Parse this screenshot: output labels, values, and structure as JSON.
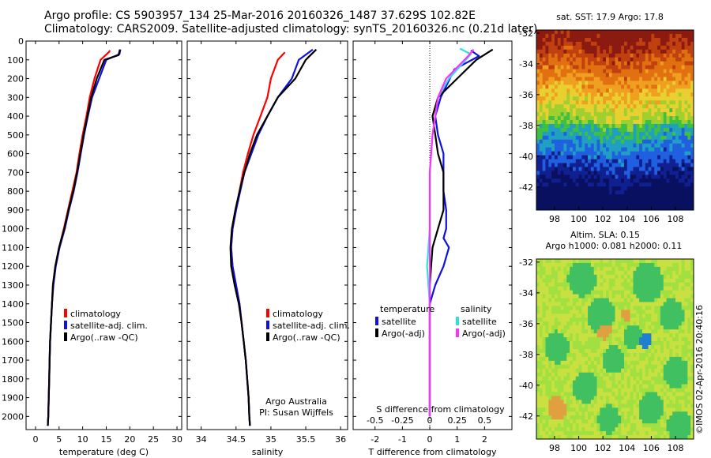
{
  "header": {
    "line1": "Argo profile: CS 5903957_134 25-Mar-2016 20160326_1487 37.629S 102.82E",
    "line2": "Climatology: CARS2009. Satellite-adjusted climatology: synTS_20160326.nc (0.21d later)"
  },
  "side_label": "©IMOS 02-Apr-2016 20:40:16",
  "colors": {
    "climatology": "#ff0000",
    "satellite": "#1010e0",
    "argo": "#000000",
    "sat_salinity": "#30e0e0",
    "argo_salinity": "#ff30ff"
  },
  "chart_data": [
    {
      "type": "line",
      "id": "temperature",
      "xlabel": "temperature (deg C)",
      "ylabel": "",
      "xlim": [
        -2,
        31
      ],
      "ylim": [
        2070,
        0
      ],
      "xticks": [
        0,
        5,
        10,
        15,
        20,
        25,
        30
      ],
      "yticks": [
        0,
        100,
        200,
        300,
        400,
        500,
        600,
        700,
        800,
        900,
        1000,
        1100,
        1200,
        1300,
        1400,
        1500,
        1600,
        1700,
        1800,
        1900,
        2000
      ],
      "legend": [
        "climatology",
        "satellite-adj. clim.",
        "Argo(..raw -QC)"
      ],
      "series": [
        {
          "name": "climatology",
          "color": "#ff0000",
          "points": [
            [
              15.8,
              50
            ],
            [
              15.5,
              60
            ],
            [
              13.8,
              100
            ],
            [
              12.5,
              200
            ],
            [
              11.5,
              300
            ],
            [
              10.8,
              400
            ],
            [
              10.0,
              500
            ],
            [
              9.3,
              600
            ],
            [
              8.7,
              700
            ],
            [
              7.8,
              800
            ],
            [
              6.9,
              900
            ],
            [
              6.0,
              1000
            ],
            [
              5.0,
              1100
            ],
            [
              4.2,
              1200
            ],
            [
              3.7,
              1300
            ],
            [
              3.5,
              1400
            ],
            [
              3.3,
              1500
            ],
            [
              3.1,
              1600
            ],
            [
              3.0,
              1700
            ],
            [
              2.9,
              1800
            ],
            [
              2.8,
              1900
            ],
            [
              2.7,
              2000
            ],
            [
              2.6,
              2050
            ]
          ]
        },
        {
          "name": "satellite-adj. clim.",
          "color": "#1010e0",
          "points": [
            [
              18.0,
              45
            ],
            [
              17.8,
              70
            ],
            [
              15.0,
              100
            ],
            [
              13.5,
              200
            ],
            [
              12.0,
              300
            ],
            [
              11.1,
              400
            ],
            [
              10.3,
              500
            ],
            [
              9.6,
              600
            ],
            [
              8.9,
              700
            ],
            [
              8.1,
              800
            ],
            [
              7.1,
              900
            ],
            [
              6.2,
              1000
            ],
            [
              5.1,
              1100
            ],
            [
              4.3,
              1200
            ],
            [
              3.8,
              1300
            ],
            [
              3.5,
              1400
            ],
            [
              3.3,
              1500
            ],
            [
              3.1,
              1600
            ],
            [
              3.0,
              1700
            ],
            [
              2.9,
              1800
            ],
            [
              2.8,
              1900
            ],
            [
              2.7,
              2000
            ],
            [
              2.6,
              2050
            ]
          ]
        },
        {
          "name": "Argo(..raw -QC)",
          "color": "#000000",
          "points": [
            [
              17.9,
              45
            ],
            [
              17.6,
              75
            ],
            [
              14.6,
              100
            ],
            [
              13.0,
              200
            ],
            [
              11.8,
              300
            ],
            [
              11.0,
              400
            ],
            [
              10.2,
              500
            ],
            [
              9.5,
              600
            ],
            [
              8.8,
              700
            ],
            [
              8.0,
              800
            ],
            [
              7.0,
              900
            ],
            [
              6.1,
              1000
            ],
            [
              5.0,
              1100
            ],
            [
              4.2,
              1200
            ],
            [
              3.7,
              1300
            ],
            [
              3.5,
              1400
            ],
            [
              3.3,
              1500
            ],
            [
              3.1,
              1600
            ],
            [
              3.0,
              1700
            ],
            [
              2.9,
              1800
            ],
            [
              2.8,
              1900
            ],
            [
              2.7,
              2000
            ],
            [
              2.6,
              2050
            ]
          ]
        }
      ]
    },
    {
      "type": "line",
      "id": "salinity",
      "xlabel": "salinity",
      "ylabel": "",
      "xlim": [
        33.8,
        36.1
      ],
      "ylim": [
        2070,
        0
      ],
      "xticks": [
        34,
        34.5,
        35,
        35.5,
        36
      ],
      "yticks": [
        0,
        100,
        200,
        300,
        400,
        500,
        600,
        700,
        800,
        900,
        1000,
        1100,
        1200,
        1300,
        1400,
        1500,
        1600,
        1700,
        1800,
        1900,
        2000
      ],
      "legend": [
        "climatology",
        "satellite-adj. clim.",
        "Argo(..raw -QC)"
      ],
      "annotation": [
        "Argo Australia",
        "PI: Susan Wijffels"
      ],
      "series": [
        {
          "name": "climatology",
          "color": "#ff0000",
          "points": [
            [
              35.2,
              60
            ],
            [
              35.1,
              100
            ],
            [
              35.0,
              200
            ],
            [
              34.95,
              300
            ],
            [
              34.85,
              400
            ],
            [
              34.75,
              500
            ],
            [
              34.67,
              600
            ],
            [
              34.6,
              700
            ],
            [
              34.55,
              800
            ],
            [
              34.5,
              900
            ],
            [
              34.45,
              1000
            ],
            [
              34.43,
              1100
            ],
            [
              34.45,
              1200
            ],
            [
              34.5,
              1300
            ],
            [
              34.55,
              1400
            ],
            [
              34.58,
              1500
            ],
            [
              34.61,
              1600
            ],
            [
              34.64,
              1700
            ],
            [
              34.66,
              1800
            ],
            [
              34.68,
              1900
            ],
            [
              34.69,
              2000
            ],
            [
              34.7,
              2050
            ]
          ]
        },
        {
          "name": "satellite-adj. clim.",
          "color": "#1010e0",
          "points": [
            [
              35.6,
              45
            ],
            [
              35.4,
              100
            ],
            [
              35.3,
              200
            ],
            [
              35.1,
              300
            ],
            [
              34.95,
              400
            ],
            [
              34.82,
              500
            ],
            [
              34.72,
              600
            ],
            [
              34.62,
              700
            ],
            [
              34.56,
              800
            ],
            [
              34.5,
              900
            ],
            [
              34.45,
              1000
            ],
            [
              34.43,
              1100
            ],
            [
              34.45,
              1200
            ],
            [
              34.5,
              1300
            ],
            [
              34.55,
              1400
            ],
            [
              34.58,
              1500
            ],
            [
              34.61,
              1600
            ],
            [
              34.64,
              1700
            ],
            [
              34.66,
              1800
            ],
            [
              34.68,
              1900
            ],
            [
              34.69,
              2000
            ],
            [
              34.7,
              2050
            ]
          ]
        },
        {
          "name": "Argo(..raw -QC)",
          "color": "#000000",
          "points": [
            [
              35.65,
              45
            ],
            [
              35.5,
              100
            ],
            [
              35.35,
              200
            ],
            [
              35.1,
              300
            ],
            [
              34.95,
              400
            ],
            [
              34.8,
              500
            ],
            [
              34.7,
              600
            ],
            [
              34.62,
              700
            ],
            [
              34.55,
              800
            ],
            [
              34.49,
              900
            ],
            [
              34.44,
              1000
            ],
            [
              34.42,
              1100
            ],
            [
              34.43,
              1200
            ],
            [
              34.48,
              1300
            ],
            [
              34.54,
              1400
            ],
            [
              34.58,
              1500
            ],
            [
              34.61,
              1600
            ],
            [
              34.64,
              1700
            ],
            [
              34.66,
              1800
            ],
            [
              34.68,
              1900
            ],
            [
              34.69,
              2000
            ],
            [
              34.7,
              2050
            ]
          ]
        }
      ]
    },
    {
      "type": "line",
      "id": "difference",
      "xlabel": "T difference from climatology",
      "top_label": "S difference from climatology",
      "xlim": [
        -2.8,
        3.0
      ],
      "ylim": [
        2070,
        0
      ],
      "xticks": [
        -2,
        -1,
        0,
        1,
        2
      ],
      "top_ticks": [
        "-0.5",
        "-0.25",
        "0",
        "0.25",
        "0.5"
      ],
      "yticks": [
        0,
        100,
        200,
        300,
        400,
        500,
        600,
        700,
        800,
        900,
        1000,
        1100,
        1200,
        1300,
        1400,
        1500,
        1600,
        1700,
        1800,
        1900,
        2000
      ],
      "legend_titles": [
        "temperature",
        "salinity"
      ],
      "legend": [
        "satellite",
        "Argo(-adj)",
        "satellite",
        "Argo(-adj)"
      ],
      "series": [
        {
          "name": "satellite",
          "group": "temperature",
          "color": "#1010e0",
          "points": [
            [
              1.5,
              50
            ],
            [
              1.8,
              80
            ],
            [
              0.9,
              150
            ],
            [
              0.4,
              300
            ],
            [
              0.2,
              400
            ],
            [
              0.3,
              500
            ],
            [
              0.5,
              600
            ],
            [
              0.5,
              700
            ],
            [
              0.5,
              800
            ],
            [
              0.6,
              900
            ],
            [
              0.6,
              1000
            ],
            [
              0.5,
              1050
            ],
            [
              0.7,
              1100
            ],
            [
              0.5,
              1200
            ],
            [
              0.2,
              1300
            ],
            [
              0.0,
              1400
            ],
            [
              0.0,
              1600
            ],
            [
              0.0,
              1800
            ],
            [
              0.0,
              2000
            ]
          ]
        },
        {
          "name": "Argo(-adj)",
          "group": "temperature",
          "color": "#000000",
          "points": [
            [
              2.3,
              45
            ],
            [
              1.7,
              100
            ],
            [
              1.0,
              200
            ],
            [
              0.3,
              300
            ],
            [
              0.1,
              400
            ],
            [
              0.2,
              500
            ],
            [
              0.3,
              600
            ],
            [
              0.5,
              700
            ],
            [
              0.5,
              800
            ],
            [
              0.5,
              900
            ],
            [
              0.3,
              1000
            ],
            [
              0.1,
              1100
            ],
            [
              0.0,
              1300
            ],
            [
              0.0,
              1600
            ],
            [
              0.0,
              1800
            ],
            [
              0.0,
              2000
            ]
          ]
        },
        {
          "name": "satellite",
          "group": "salinity",
          "color": "#30e0e0",
          "points": [
            [
              1.1,
              40
            ],
            [
              1.5,
              70
            ],
            [
              0.7,
              200
            ],
            [
              0.3,
              300
            ],
            [
              0.1,
              500
            ],
            [
              0.0,
              700
            ],
            [
              0.0,
              1000
            ],
            [
              -0.1,
              1200
            ],
            [
              0.0,
              1400
            ],
            [
              0.0,
              1800
            ],
            [
              0.0,
              2000
            ]
          ]
        },
        {
          "name": "Argo(-adj)",
          "group": "salinity",
          "color": "#ff30ff",
          "points": [
            [
              1.6,
              45
            ],
            [
              1.4,
              80
            ],
            [
              0.6,
              200
            ],
            [
              0.3,
              300
            ],
            [
              0.1,
              500
            ],
            [
              0.0,
              700
            ],
            [
              0.0,
              1000
            ],
            [
              0.0,
              1200
            ],
            [
              0.0,
              1400
            ],
            [
              0.0,
              1800
            ],
            [
              0.0,
              2000
            ]
          ]
        }
      ]
    },
    {
      "type": "heatmap",
      "id": "sst_map",
      "title": "sat. SST: 17.9 Argo: 17.8",
      "xlim": [
        96.5,
        109.5
      ],
      "ylim": [
        -43.5,
        -31.8
      ],
      "xticks": [
        98,
        100,
        102,
        104,
        106,
        108
      ],
      "yticks": [
        -32,
        -34,
        -36,
        -38,
        -40,
        -42
      ],
      "colors": [
        "#8b1a10",
        "#c04010",
        "#e07010",
        "#f0a020",
        "#e8d030",
        "#a0d030",
        "#40c040",
        "#20a0c0",
        "#2060e0",
        "#102090",
        "#0a1060"
      ]
    },
    {
      "type": "heatmap",
      "id": "sla_map",
      "title": "Altim. SLA: 0.15",
      "subtitle": "Argo h1000: 0.081 h2000: 0.11",
      "xlim": [
        96.5,
        109.5
      ],
      "ylim": [
        -43.5,
        -31.8
      ],
      "xticks": [
        98,
        100,
        102,
        104,
        106,
        108
      ],
      "yticks": [
        -32,
        -34,
        -36,
        -38,
        -40,
        -42
      ],
      "colors": [
        "#a0e040",
        "#c8e040",
        "#40c060",
        "#e0a040",
        "#2080d0"
      ]
    }
  ]
}
